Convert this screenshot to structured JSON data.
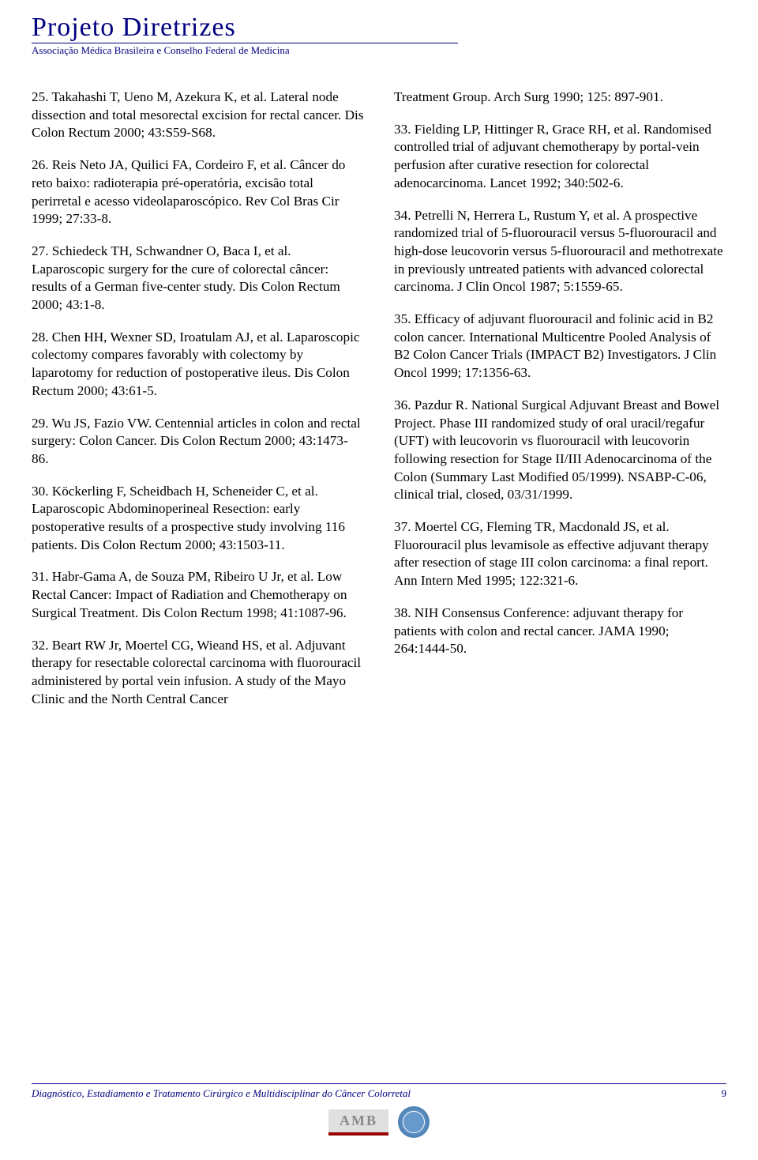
{
  "header": {
    "title": "Projeto Diretrizes",
    "subtitle": "Associação Médica Brasileira e Conselho Federal de Medicina"
  },
  "refs_left": [
    "25. Takahashi T, Ueno M, Azekura K, et al. Lateral node dissection and total mesorectal excision for rectal cancer. Dis Colon Rectum 2000; 43:S59-S68.",
    "26. Reis Neto JA, Quilici FA, Cordeiro F, et al. Câncer do reto baixo: radioterapia pré-operatória, excisão total perirretal e acesso videolaparoscópico. Rev Col Bras Cir 1999; 27:33-8.",
    "27. Schiedeck TH, Schwandner O, Baca I, et al. Laparoscopic surgery for the cure of colorectal câncer: results of a German five-center study. Dis Colon Rectum 2000; 43:1-8.",
    "28. Chen HH, Wexner SD, Iroatulam AJ, et al. Laparoscopic colectomy compares favorably with colectomy by laparotomy for reduction of postoperative ileus. Dis Colon Rectum 2000; 43:61-5.",
    "29. Wu JS, Fazio VW. Centennial articles in colon and rectal surgery: Colon Cancer. Dis Colon Rectum 2000; 43:1473-86.",
    "30. Köckerling F, Scheidbach H, Scheneider C, et al. Laparoscopic Abdominoperineal Resection: early postoperative results of a prospective study involving 116 patients. Dis Colon Rectum 2000; 43:1503-11.",
    "31. Habr-Gama A, de Souza PM, Ribeiro U Jr, et al. Low Rectal Cancer: Impact of Radiation and Chemotherapy on Surgical Treatment. Dis Colon Rectum 1998; 41:1087-96.",
    "32. Beart RW Jr, Moertel CG, Wieand HS, et al. Adjuvant therapy for resectable colorectal carcinoma with fluorouracil administered by portal vein infusion. A study of the Mayo Clinic and the North Central Cancer"
  ],
  "refs_right": [
    "Treatment Group. Arch Surg 1990; 125: 897-901.",
    "33. Fielding LP, Hittinger R, Grace RH, et al. Randomised controlled trial of adjuvant chemotherapy by portal-vein perfusion after curative resection for colorectal adenocarcinoma. Lancet 1992; 340:502-6.",
    "34. Petrelli N, Herrera L, Rustum Y, et al. A prospective randomized trial of 5-fluorouracil versus 5-fluorouracil and high-dose leucovorin versus 5-fluorouracil and methotrexate in previously untreated patients with advanced colorectal carcinoma. J Clin Oncol 1987; 5:1559-65.",
    "35. Efficacy of adjuvant fluorouracil and folinic acid in B2 colon cancer. International Multicentre Pooled Analysis of B2 Colon Cancer Trials (IMPACT B2) Investigators. J Clin Oncol 1999; 17:1356-63.",
    "36. Pazdur R. National Surgical Adjuvant Breast and Bowel Project. Phase III randomized study of oral uracil/regafur (UFT) with leucovorin vs fluorouracil with leucovorin following resection for Stage II/III Adenocarcinoma of the Colon (Summary Last Modified 05/1999). NSABP-C-06, clinical trial, closed, 03/31/1999.",
    "37. Moertel CG, Fleming TR, Macdonald JS, et al. Fluorouracil plus levamisole as effective adjuvant therapy after resection of stage III colon carcinoma: a final report. Ann Intern Med 1995; 122:321-6.",
    "38. NIH Consensus Conference: adjuvant therapy for patients with colon and rectal cancer. JAMA 1990; 264:1444-50."
  ],
  "footer": {
    "text": "Diagnóstico, Estadiamento e Tratamento Cirúrgico e Multidisciplinar do Câncer Colorretal",
    "page": "9",
    "logo_amb": "AMB"
  }
}
